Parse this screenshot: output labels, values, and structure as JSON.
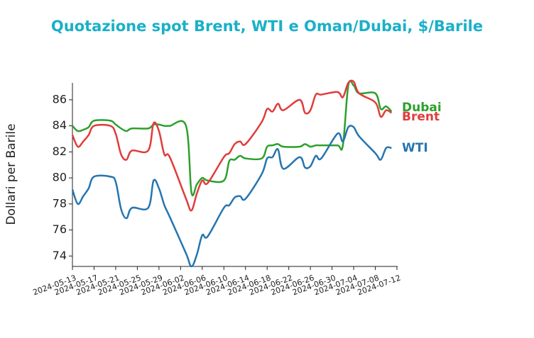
{
  "chart_data": {
    "type": "line",
    "title": "Quotazione spot Brent, WTI e Oman/Dubai, $/Barile",
    "y_label": "Dollari per Barile",
    "x": [
      "2024-05-13",
      "2024-05-14",
      "2024-05-15",
      "2024-05-16",
      "2024-05-17",
      "2024-05-20",
      "2024-05-21",
      "2024-05-22",
      "2024-05-23",
      "2024-05-24",
      "2024-05-27",
      "2024-05-28",
      "2024-05-29",
      "2024-05-30",
      "2024-05-31",
      "2024-06-03",
      "2024-06-04",
      "2024-06-05",
      "2024-06-06",
      "2024-06-07",
      "2024-06-10",
      "2024-06-11",
      "2024-06-12",
      "2024-06-13",
      "2024-06-14",
      "2024-06-17",
      "2024-06-18",
      "2024-06-19",
      "2024-06-20",
      "2024-06-21",
      "2024-06-24",
      "2024-06-25",
      "2024-06-26",
      "2024-06-27",
      "2024-06-28",
      "2024-07-01",
      "2024-07-02",
      "2024-07-03",
      "2024-07-04",
      "2024-07-05",
      "2024-07-08",
      "2024-07-09",
      "2024-07-10",
      "2024-07-11"
    ],
    "series": [
      {
        "name": "Dubai",
        "color": "#2ca02c",
        "values": [
          84.0,
          83.6,
          83.7,
          83.9,
          84.4,
          84.4,
          84.1,
          83.8,
          83.6,
          83.8,
          83.8,
          84.1,
          84.1,
          84.0,
          84.0,
          84.0,
          78.9,
          79.5,
          80.0,
          79.8,
          79.8,
          81.3,
          81.4,
          81.7,
          81.5,
          81.5,
          82.4,
          82.5,
          82.6,
          82.4,
          82.4,
          82.6,
          82.4,
          82.5,
          82.5,
          82.5,
          82.5,
          87.1,
          87.1,
          86.5,
          86.5,
          85.3,
          85.5,
          85.1
        ]
      },
      {
        "name": "Brent",
        "color": "#e03c3c",
        "values": [
          83.3,
          82.4,
          82.8,
          83.3,
          84.0,
          84.0,
          83.4,
          81.8,
          81.4,
          82.1,
          82.1,
          84.2,
          83.6,
          81.8,
          81.6,
          78.4,
          77.5,
          78.8,
          79.8,
          79.6,
          81.6,
          81.9,
          82.6,
          82.8,
          82.6,
          84.3,
          85.3,
          85.1,
          85.7,
          85.2,
          86.0,
          85.0,
          85.2,
          86.4,
          86.4,
          86.6,
          86.2,
          87.3,
          87.4,
          86.5,
          85.8,
          84.7,
          85.2,
          85.0
        ]
      },
      {
        "name": "WTI",
        "color": "#2475b0",
        "values": [
          79.1,
          78.0,
          78.6,
          79.2,
          80.1,
          80.1,
          79.7,
          77.6,
          76.9,
          77.7,
          77.7,
          79.8,
          79.2,
          77.9,
          77.0,
          74.2,
          73.2,
          74.1,
          75.6,
          75.5,
          77.7,
          77.9,
          78.5,
          78.6,
          78.4,
          80.3,
          81.5,
          81.6,
          82.2,
          80.7,
          81.6,
          80.8,
          80.9,
          81.7,
          81.5,
          83.4,
          82.8,
          83.9,
          83.9,
          83.2,
          81.9,
          81.4,
          82.3,
          82.3
        ]
      }
    ],
    "xlim": [
      "2024-05-13",
      "2024-07-12"
    ],
    "xticks": [
      "2024-05-13",
      "2024-05-17",
      "2024-05-21",
      "2024-05-25",
      "2024-05-29",
      "2024-06-02",
      "2024-06-06",
      "2024-06-10",
      "2024-06-14",
      "2024-06-18",
      "2024-06-22",
      "2024-06-26",
      "2024-06-30",
      "2024-07-04",
      "2024-07-08",
      "2024-07-12"
    ],
    "ylim": [
      73.2,
      87.3
    ],
    "yticks": [
      74,
      76,
      78,
      80,
      82,
      84,
      86
    ]
  }
}
